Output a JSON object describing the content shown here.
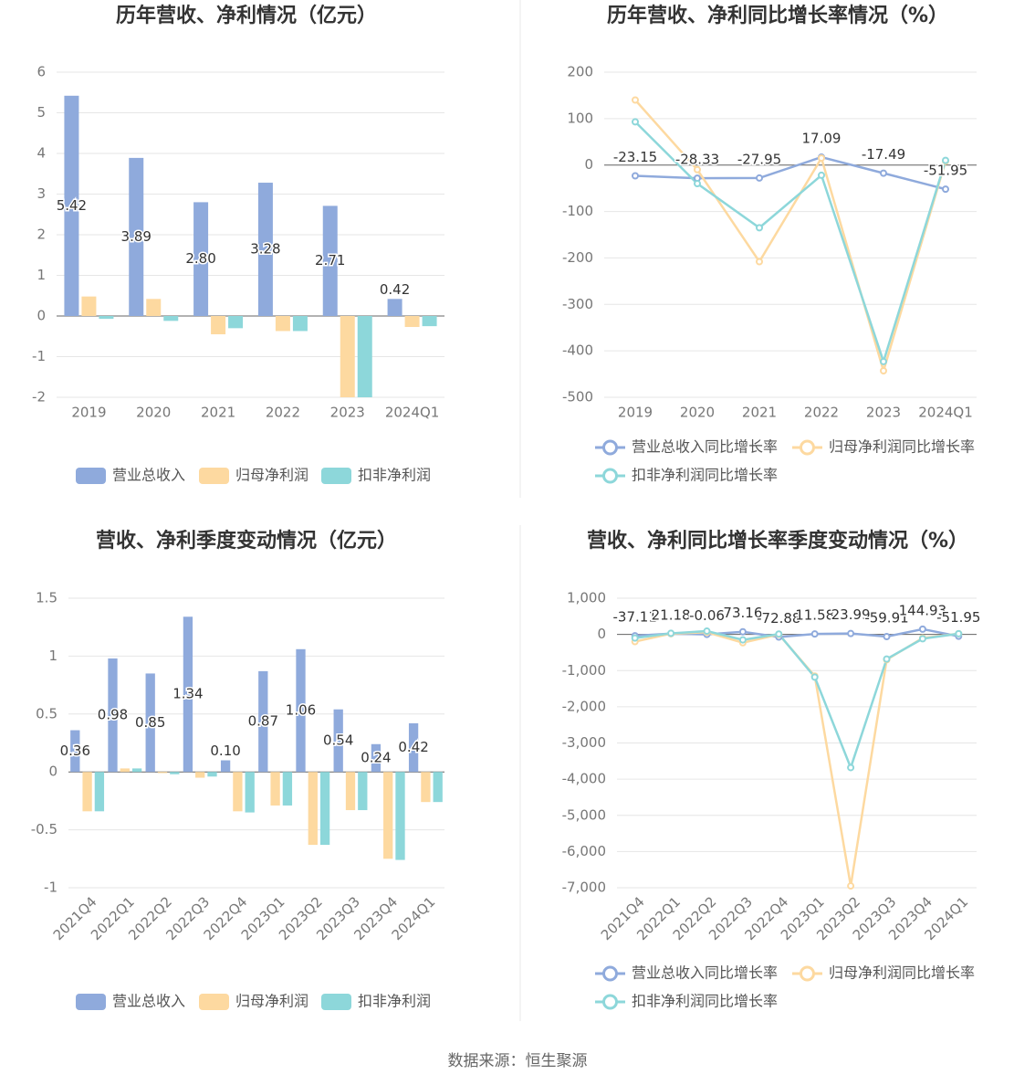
{
  "chart_data": [
    {
      "type": "bar",
      "title": "历年营收、净利情况（亿元）",
      "categories": [
        "2019",
        "2020",
        "2021",
        "2022",
        "2023",
        "2024Q1"
      ],
      "series": [
        {
          "name": "营业总收入",
          "color": "#8faadc",
          "values": [
            5.42,
            3.89,
            2.8,
            3.28,
            2.71,
            0.42
          ],
          "value_labels": [
            "5.42",
            "3.89",
            "2.80",
            "3.28",
            "2.71",
            "0.42"
          ]
        },
        {
          "name": "归母净利润",
          "color": "#fdd9a0",
          "values": [
            0.48,
            0.42,
            -0.45,
            -0.37,
            -2.0,
            -0.27
          ]
        },
        {
          "name": "扣非净利润",
          "color": "#8dd7da",
          "values": [
            -0.07,
            -0.12,
            -0.3,
            -0.37,
            -2.0,
            -0.25
          ]
        }
      ],
      "ylim": [
        -2,
        6
      ],
      "yticks": [
        -2,
        -1,
        0,
        1,
        2,
        3,
        4,
        5,
        6
      ],
      "grid": true,
      "legend": "bottom"
    },
    {
      "type": "line",
      "title": "历年营收、净利同比增长率情况（%）",
      "categories": [
        "2019",
        "2020",
        "2021",
        "2022",
        "2023",
        "2024Q1"
      ],
      "series": [
        {
          "name": "营业总收入同比增长率",
          "color": "#8faadc",
          "values": [
            -23.15,
            -28.33,
            -27.95,
            17.09,
            -17.49,
            -51.95
          ]
        },
        {
          "name": "归母净利润同比增长率",
          "color": "#fdd9a0",
          "values": [
            140,
            -10,
            -208,
            15,
            -443,
            8
          ]
        },
        {
          "name": "扣非净利润同比增长率",
          "color": "#8dd7da",
          "values": [
            93,
            -40,
            -135,
            -22,
            -423,
            10
          ]
        }
      ],
      "ylim": [
        -500,
        200
      ],
      "yticks": [
        -500,
        -400,
        -300,
        -200,
        -100,
        0,
        100,
        200
      ],
      "grid": true,
      "legend": "bottom"
    },
    {
      "type": "bar",
      "title": "营收、净利季度变动情况（亿元）",
      "categories": [
        "2021Q4",
        "2022Q1",
        "2022Q2",
        "2022Q3",
        "2022Q4",
        "2023Q1",
        "2023Q2",
        "2023Q3",
        "2023Q4",
        "2024Q1"
      ],
      "series": [
        {
          "name": "营业总收入",
          "color": "#8faadc",
          "values": [
            0.36,
            0.98,
            0.85,
            1.34,
            0.1,
            0.87,
            1.06,
            0.54,
            0.24,
            0.42
          ],
          "value_labels": [
            "0.36",
            "0.98",
            "0.85",
            "1.34",
            "0.10",
            "0.87",
            "1.06",
            "0.54",
            "0.24",
            "0.42"
          ]
        },
        {
          "name": "归母净利润",
          "color": "#fdd9a0",
          "values": [
            -0.34,
            0.03,
            -0.01,
            -0.05,
            -0.34,
            -0.29,
            -0.63,
            -0.33,
            -0.75,
            -0.26
          ]
        },
        {
          "name": "扣非净利润",
          "color": "#8dd7da",
          "values": [
            -0.34,
            0.03,
            -0.02,
            -0.04,
            -0.35,
            -0.29,
            -0.63,
            -0.33,
            -0.76,
            -0.26
          ]
        }
      ],
      "ylim": [
        -1,
        1.5
      ],
      "yticks": [
        -1,
        -0.5,
        0,
        0.5,
        1,
        1.5
      ],
      "grid": true,
      "legend": "bottom"
    },
    {
      "type": "line",
      "title": "营收、净利同比增长率季度变动情况（%）",
      "categories": [
        "2021Q4",
        "2022Q1",
        "2022Q2",
        "2022Q3",
        "2022Q4",
        "2023Q1",
        "2023Q2",
        "2023Q3",
        "2023Q4",
        "2024Q1"
      ],
      "series": [
        {
          "name": "营业总收入同比增长率",
          "color": "#8faadc",
          "values": [
            -37.11,
            21.18,
            -0.06,
            73.16,
            -72.88,
            11.58,
            23.99,
            -59.91,
            144.93,
            -51.95
          ]
        },
        {
          "name": "归母净利润同比增长率",
          "color": "#fdd9a0",
          "values": [
            -200,
            20,
            60,
            -230,
            0,
            -1150,
            -6950,
            -700,
            -100,
            20
          ]
        },
        {
          "name": "扣非净利润同比增长率",
          "color": "#8dd7da",
          "values": [
            -100,
            30,
            90,
            -150,
            10,
            -1180,
            -3680,
            -680,
            -120,
            20
          ]
        }
      ],
      "ylim": [
        -7000,
        1000
      ],
      "yticks": [
        {
          "value": -7000,
          "label": "-7,000"
        },
        {
          "value": -6000,
          "label": "-6,000"
        },
        {
          "value": -5000,
          "label": "-5,000"
        },
        {
          "value": -4000,
          "label": "-4,000"
        },
        {
          "value": -3000,
          "label": "-3,000"
        },
        {
          "value": -2000,
          "label": "-2,000"
        },
        {
          "value": -1000,
          "label": "-1,000"
        },
        0,
        {
          "value": 1000,
          "label": "1,000"
        }
      ],
      "grid": true,
      "legend": "bottom"
    }
  ],
  "source": "数据来源：恒生聚源"
}
